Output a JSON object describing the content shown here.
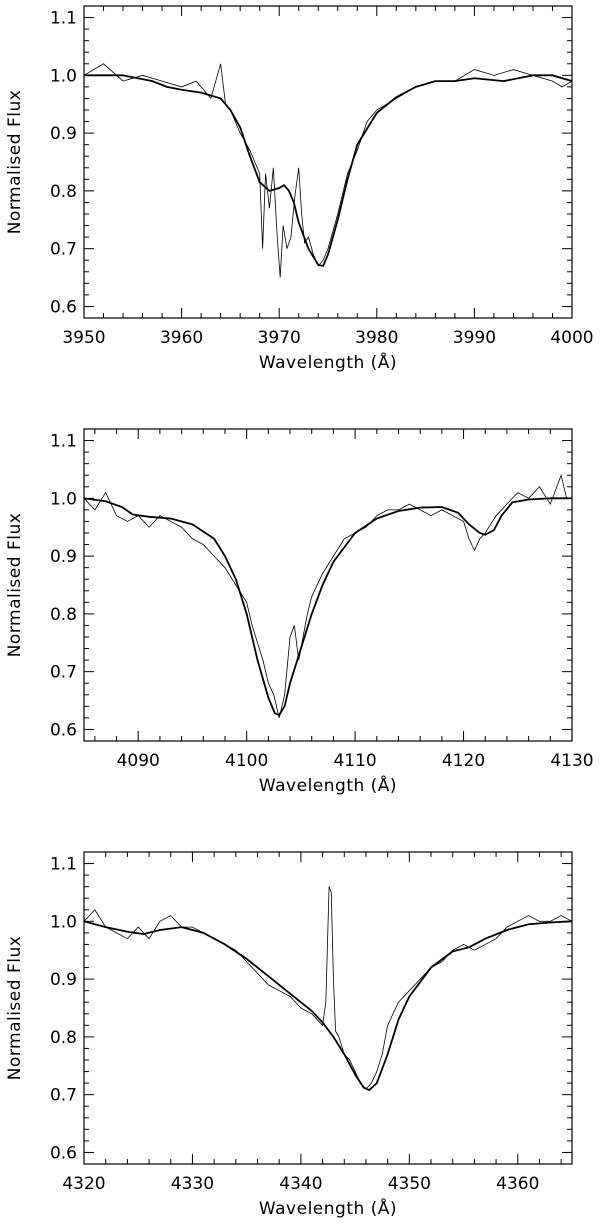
{
  "chart_data": [
    {
      "type": "line",
      "xlabel": "Wavelength (Å)",
      "ylabel": "Normalised Flux",
      "xlim": [
        3950,
        4000
      ],
      "ylim": [
        0.58,
        1.12
      ],
      "xticks": [
        3950,
        3960,
        3970,
        3980,
        3990,
        4000
      ],
      "yticks": [
        0.6,
        0.7,
        0.8,
        0.9,
        1.0,
        1.1
      ],
      "xtick_labels": [
        "3950",
        "3960",
        "3970",
        "3980",
        "3990",
        "4000"
      ],
      "ytick_labels": [
        "0.6",
        "0.7",
        "0.8",
        "0.9",
        "1.0",
        "1.1"
      ],
      "series": [
        {
          "style": "thin-noisy",
          "x": [
            3950,
            3952,
            3954,
            3956,
            3958,
            3960,
            3961.5,
            3963,
            3964,
            3964.5,
            3965,
            3966,
            3967,
            3968,
            3968.3,
            3968.6,
            3969,
            3969.4,
            3969.8,
            3970.1,
            3970.4,
            3970.8,
            3971.2,
            3971.6,
            3972,
            3972.3,
            3972.6,
            3973,
            3973.5,
            3974,
            3974.5,
            3975,
            3976,
            3977,
            3978,
            3979,
            3980,
            3982,
            3984,
            3986,
            3988,
            3990,
            3992,
            3994,
            3996,
            3998,
            3999,
            4000
          ],
          "y": [
            1.0,
            1.02,
            0.99,
            1.0,
            0.99,
            0.98,
            0.99,
            0.96,
            1.02,
            0.95,
            0.94,
            0.9,
            0.87,
            0.83,
            0.7,
            0.83,
            0.77,
            0.84,
            0.72,
            0.65,
            0.74,
            0.7,
            0.72,
            0.79,
            0.84,
            0.76,
            0.71,
            0.72,
            0.69,
            0.67,
            0.68,
            0.7,
            0.76,
            0.83,
            0.87,
            0.92,
            0.94,
            0.96,
            0.98,
            0.99,
            0.99,
            1.01,
            1.0,
            1.01,
            1.0,
            0.99,
            0.98,
            0.99
          ]
        },
        {
          "style": "thick-model",
          "x": [
            3950,
            3954,
            3957,
            3958.5,
            3960,
            3962,
            3964,
            3965,
            3966,
            3967,
            3968,
            3969,
            3970,
            3970.5,
            3971,
            3971.5,
            3972,
            3973,
            3974,
            3974.5,
            3975,
            3976,
            3977,
            3978,
            3980,
            3982,
            3984,
            3986,
            3988,
            3990,
            3993,
            3996,
            3998,
            4000
          ],
          "y": [
            1.0,
            1.0,
            0.99,
            0.98,
            0.975,
            0.97,
            0.96,
            0.94,
            0.91,
            0.86,
            0.815,
            0.8,
            0.805,
            0.81,
            0.8,
            0.78,
            0.745,
            0.7,
            0.672,
            0.67,
            0.69,
            0.75,
            0.82,
            0.88,
            0.935,
            0.962,
            0.98,
            0.99,
            0.99,
            0.995,
            0.99,
            1.0,
            1.0,
            0.99
          ]
        }
      ]
    },
    {
      "type": "line",
      "xlabel": "Wavelength (Å)",
      "ylabel": "Normalised Flux",
      "xlim": [
        4085,
        4130
      ],
      "ylim": [
        0.58,
        1.12
      ],
      "xticks": [
        4090,
        4100,
        4110,
        4120,
        4130
      ],
      "yticks": [
        0.6,
        0.7,
        0.8,
        0.9,
        1.0,
        1.1
      ],
      "xtick_labels": [
        "4090",
        "4100",
        "4110",
        "4120",
        "4130"
      ],
      "ytick_labels": [
        "0.6",
        "0.7",
        "0.8",
        "0.9",
        "1.0",
        "1.1"
      ],
      "series": [
        {
          "style": "thin-noisy",
          "x": [
            4085,
            4086,
            4087,
            4088,
            4089,
            4090,
            4091,
            4092,
            4093,
            4094,
            4095,
            4096,
            4097,
            4098,
            4099,
            4100,
            4100.5,
            4101,
            4101.5,
            4102,
            4102.5,
            4103,
            4103.5,
            4104,
            4104.4,
            4104.8,
            4105.2,
            4105.6,
            4106,
            4107,
            4108,
            4109,
            4110,
            4111,
            4112,
            4113,
            4114,
            4115,
            4116,
            4117,
            4118,
            4119,
            4120,
            4120.5,
            4121,
            4121.5,
            4122,
            4123,
            4124,
            4125,
            4126,
            4127,
            4128,
            4129,
            4129.5,
            4130
          ],
          "y": [
            1.0,
            0.98,
            1.01,
            0.97,
            0.96,
            0.97,
            0.95,
            0.97,
            0.96,
            0.95,
            0.93,
            0.92,
            0.9,
            0.88,
            0.85,
            0.82,
            0.78,
            0.75,
            0.72,
            0.68,
            0.66,
            0.62,
            0.66,
            0.76,
            0.78,
            0.72,
            0.76,
            0.8,
            0.83,
            0.87,
            0.9,
            0.93,
            0.94,
            0.95,
            0.97,
            0.98,
            0.98,
            0.99,
            0.98,
            0.97,
            0.98,
            0.97,
            0.96,
            0.93,
            0.91,
            0.93,
            0.94,
            0.97,
            0.99,
            1.01,
            1.0,
            1.02,
            0.99,
            1.04,
            1.0,
            1.0
          ]
        },
        {
          "style": "thick-model",
          "x": [
            4085,
            4087,
            4088.5,
            4089.5,
            4091,
            4093,
            4095,
            4097,
            4098,
            4099,
            4100,
            4101,
            4102,
            4102.6,
            4103,
            4103.5,
            4104,
            4105,
            4106,
            4107,
            4108,
            4110,
            4112,
            4114,
            4116,
            4118,
            4119.5,
            4120.5,
            4121.5,
            4122,
            4122.8,
            4123.5,
            4124.5,
            4126,
            4128,
            4130
          ],
          "y": [
            1.0,
            0.995,
            0.985,
            0.972,
            0.968,
            0.965,
            0.955,
            0.93,
            0.9,
            0.86,
            0.8,
            0.72,
            0.655,
            0.628,
            0.625,
            0.64,
            0.68,
            0.74,
            0.8,
            0.85,
            0.89,
            0.94,
            0.965,
            0.978,
            0.984,
            0.985,
            0.975,
            0.955,
            0.94,
            0.937,
            0.945,
            0.97,
            0.993,
            0.998,
            1.0,
            1.0
          ]
        }
      ]
    },
    {
      "type": "line",
      "xlabel": "Wavelength (Å)",
      "ylabel": "Normalised Flux",
      "xlim": [
        4320,
        4365
      ],
      "ylim": [
        0.58,
        1.12
      ],
      "xticks": [
        4320,
        4330,
        4340,
        4350,
        4360
      ],
      "yticks": [
        0.6,
        0.7,
        0.8,
        0.9,
        1.0,
        1.1
      ],
      "xtick_labels": [
        "4320",
        "4330",
        "4340",
        "4350",
        "4360"
      ],
      "ytick_labels": [
        "0.6",
        "0.7",
        "0.8",
        "0.9",
        "1.0",
        "1.1"
      ],
      "series": [
        {
          "style": "thin-noisy",
          "x": [
            4320,
            4321,
            4322,
            4323,
            4324,
            4325,
            4326,
            4327,
            4328,
            4329,
            4330,
            4331,
            4332,
            4333,
            4334,
            4335,
            4336,
            4337,
            4338,
            4339,
            4340,
            4341,
            4341.5,
            4342,
            4342.3,
            4342.6,
            4342.8,
            4343,
            4343.2,
            4343.5,
            4344,
            4344.5,
            4345,
            4345.5,
            4346,
            4346.5,
            4347,
            4347.5,
            4348,
            4349,
            4350,
            4351,
            4352,
            4353,
            4354,
            4355,
            4356,
            4357,
            4358,
            4359,
            4360,
            4361,
            4362,
            4363,
            4364,
            4365
          ],
          "y": [
            1.0,
            1.02,
            0.99,
            0.98,
            0.97,
            0.99,
            0.97,
            1.0,
            1.01,
            0.99,
            0.99,
            0.98,
            0.97,
            0.96,
            0.95,
            0.93,
            0.91,
            0.89,
            0.88,
            0.87,
            0.85,
            0.84,
            0.83,
            0.82,
            0.86,
            1.06,
            1.05,
            0.9,
            0.81,
            0.8,
            0.77,
            0.76,
            0.74,
            0.72,
            0.71,
            0.72,
            0.74,
            0.77,
            0.82,
            0.86,
            0.88,
            0.9,
            0.92,
            0.93,
            0.95,
            0.96,
            0.95,
            0.96,
            0.97,
            0.99,
            1.0,
            1.01,
            1.0,
            1.0,
            1.01,
            1.0
          ]
        },
        {
          "style": "thick-model",
          "x": [
            4320,
            4322,
            4324,
            4325.5,
            4327,
            4329,
            4331,
            4333,
            4335,
            4337,
            4339,
            4341,
            4342,
            4343,
            4344,
            4345,
            4345.8,
            4346.3,
            4347,
            4348,
            4349,
            4350,
            4352,
            4354,
            4355.5,
            4357,
            4359,
            4361,
            4363,
            4365
          ],
          "y": [
            1.0,
            0.99,
            0.982,
            0.978,
            0.985,
            0.99,
            0.98,
            0.96,
            0.935,
            0.905,
            0.875,
            0.845,
            0.825,
            0.8,
            0.77,
            0.735,
            0.712,
            0.708,
            0.72,
            0.77,
            0.83,
            0.87,
            0.92,
            0.948,
            0.955,
            0.97,
            0.985,
            0.995,
            0.998,
            1.0
          ]
        }
      ]
    }
  ]
}
